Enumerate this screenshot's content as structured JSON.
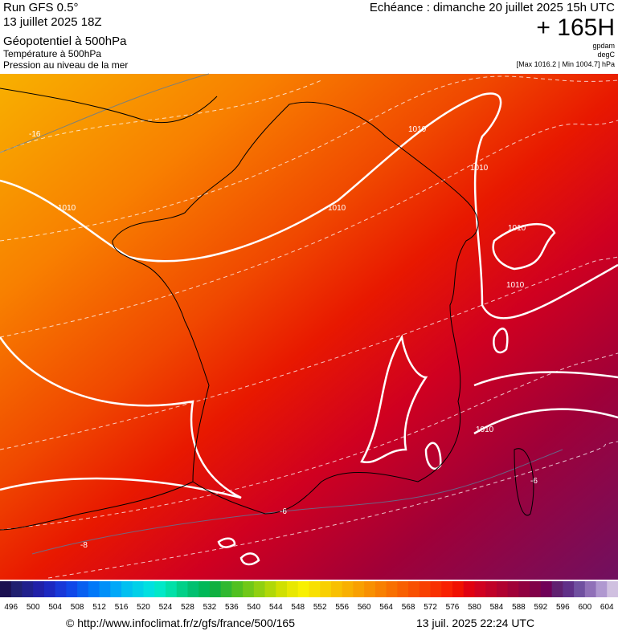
{
  "header": {
    "model": "Run GFS 0.5°",
    "run": "13 juillet 2025 18Z",
    "field1": "Géopotentiel à 500hPa",
    "field2": "Température à 500hPa",
    "field3": "Pression au niveau de la mer",
    "valid": "Echéance : dimanche 20 juillet 2025 15h UTC",
    "lead": "+ 165H",
    "unit1": "gpdam",
    "unit2": "degC",
    "range": "[Max 1016.2 | Min 1004.7] hPa"
  },
  "map": {
    "contour_labels": [
      "1010",
      "1010",
      "1010",
      "1010",
      "1010",
      "1010",
      "1010",
      "-16",
      "-8",
      "-6",
      "-6"
    ]
  },
  "legend": {
    "colors": [
      "#1a1050",
      "#202070",
      "#20208c",
      "#2020a8",
      "#1c28c0",
      "#1838d8",
      "#1048e8",
      "#0860f0",
      "#0078f8",
      "#0090f8",
      "#00a8f8",
      "#00c0f0",
      "#00d0e8",
      "#00e0e0",
      "#00e8c8",
      "#00e0a8",
      "#00d088",
      "#00c070",
      "#00b858",
      "#10b040",
      "#30b830",
      "#50c020",
      "#70c818",
      "#90d010",
      "#b0d808",
      "#d0e000",
      "#e8e800",
      "#f8f000",
      "#f8e000",
      "#f8d000",
      "#f8c000",
      "#f8b000",
      "#f8a000",
      "#f89000",
      "#f88000",
      "#f87000",
      "#f86000",
      "#f85000",
      "#f84000",
      "#f83000",
      "#f82000",
      "#f01000",
      "#e00010",
      "#d00020",
      "#c00028",
      "#b00030",
      "#a00038",
      "#900040",
      "#800048",
      "#700058",
      "#602070",
      "#603088",
      "#7050a0",
      "#9070b8",
      "#b098d0",
      "#d0c0e0"
    ],
    "labels": [
      496,
      500,
      504,
      508,
      512,
      516,
      520,
      524,
      528,
      532,
      536,
      540,
      544,
      548,
      552,
      556,
      560,
      564,
      568,
      572,
      576,
      580,
      584,
      588,
      592,
      596,
      600,
      604
    ]
  },
  "footer": {
    "url": "© http://www.infoclimat.fr/z/gfs/france/500/165",
    "stamp": "13 juil. 2025 22:24 UTC"
  }
}
